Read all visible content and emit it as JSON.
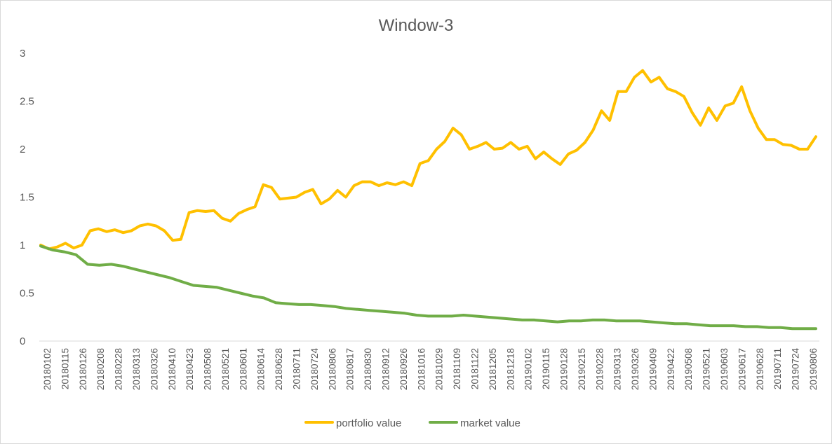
{
  "chart_data": {
    "type": "line",
    "title": "Window-3",
    "xlabel": "",
    "ylabel": "",
    "ylim": [
      0,
      3
    ],
    "y_ticks": [
      "0",
      "0.5",
      "1",
      "1.5",
      "2",
      "2.5",
      "3"
    ],
    "x_tick_labels": [
      "20180102",
      "20180115",
      "20180126",
      "20180208",
      "20180228",
      "20180313",
      "20180326",
      "20180410",
      "20180423",
      "20180508",
      "20180521",
      "20180601",
      "20180614",
      "20180628",
      "20180711",
      "20180724",
      "20180806",
      "20180817",
      "20180830",
      "20180912",
      "20180926",
      "20181016",
      "20181029",
      "20181109",
      "20181122",
      "20181205",
      "20181218",
      "20190102",
      "20190115",
      "20190128",
      "20190215",
      "20190228",
      "20190313",
      "20190326",
      "20190409",
      "20190422",
      "20190508",
      "20190521",
      "20190603",
      "20190617",
      "20190628",
      "20190711",
      "20190724",
      "20190806"
    ],
    "grid": false,
    "legend": "bottom",
    "series": [
      {
        "name": "portfolio value",
        "color": "#ffc000",
        "values": [
          1.0,
          0.96,
          0.98,
          1.02,
          0.97,
          1.0,
          1.15,
          1.17,
          1.14,
          1.16,
          1.13,
          1.15,
          1.2,
          1.22,
          1.2,
          1.15,
          1.05,
          1.06,
          1.34,
          1.36,
          1.35,
          1.36,
          1.28,
          1.25,
          1.33,
          1.37,
          1.4,
          1.63,
          1.6,
          1.48,
          1.49,
          1.5,
          1.55,
          1.58,
          1.43,
          1.48,
          1.57,
          1.5,
          1.62,
          1.66,
          1.66,
          1.62,
          1.65,
          1.63,
          1.66,
          1.62,
          1.85,
          1.88,
          2.0,
          2.08,
          2.22,
          2.15,
          2.0,
          2.03,
          2.07,
          2.0,
          2.01,
          2.07,
          2.0,
          2.03,
          1.9,
          1.97,
          1.9,
          1.84,
          1.95,
          1.99,
          2.07,
          2.2,
          2.4,
          2.3,
          2.6,
          2.6,
          2.75,
          2.82,
          2.7,
          2.75,
          2.63,
          2.6,
          2.55,
          2.38,
          2.25,
          2.43,
          2.3,
          2.45,
          2.48,
          2.65,
          2.4,
          2.22,
          2.1,
          2.1,
          2.05,
          2.04,
          2.0,
          2.0,
          2.13
        ]
      },
      {
        "name": "market value",
        "color": "#70ad47",
        "values": [
          0.99,
          0.95,
          0.93,
          0.9,
          0.8,
          0.79,
          0.8,
          0.78,
          0.75,
          0.72,
          0.69,
          0.66,
          0.62,
          0.58,
          0.57,
          0.56,
          0.53,
          0.5,
          0.47,
          0.45,
          0.4,
          0.39,
          0.38,
          0.38,
          0.37,
          0.36,
          0.34,
          0.33,
          0.32,
          0.31,
          0.3,
          0.29,
          0.27,
          0.26,
          0.26,
          0.26,
          0.27,
          0.26,
          0.25,
          0.24,
          0.23,
          0.22,
          0.22,
          0.21,
          0.2,
          0.21,
          0.21,
          0.22,
          0.22,
          0.21,
          0.21,
          0.21,
          0.2,
          0.19,
          0.18,
          0.18,
          0.17,
          0.16,
          0.16,
          0.16,
          0.15,
          0.15,
          0.14,
          0.14,
          0.13,
          0.13,
          0.13
        ]
      }
    ]
  }
}
